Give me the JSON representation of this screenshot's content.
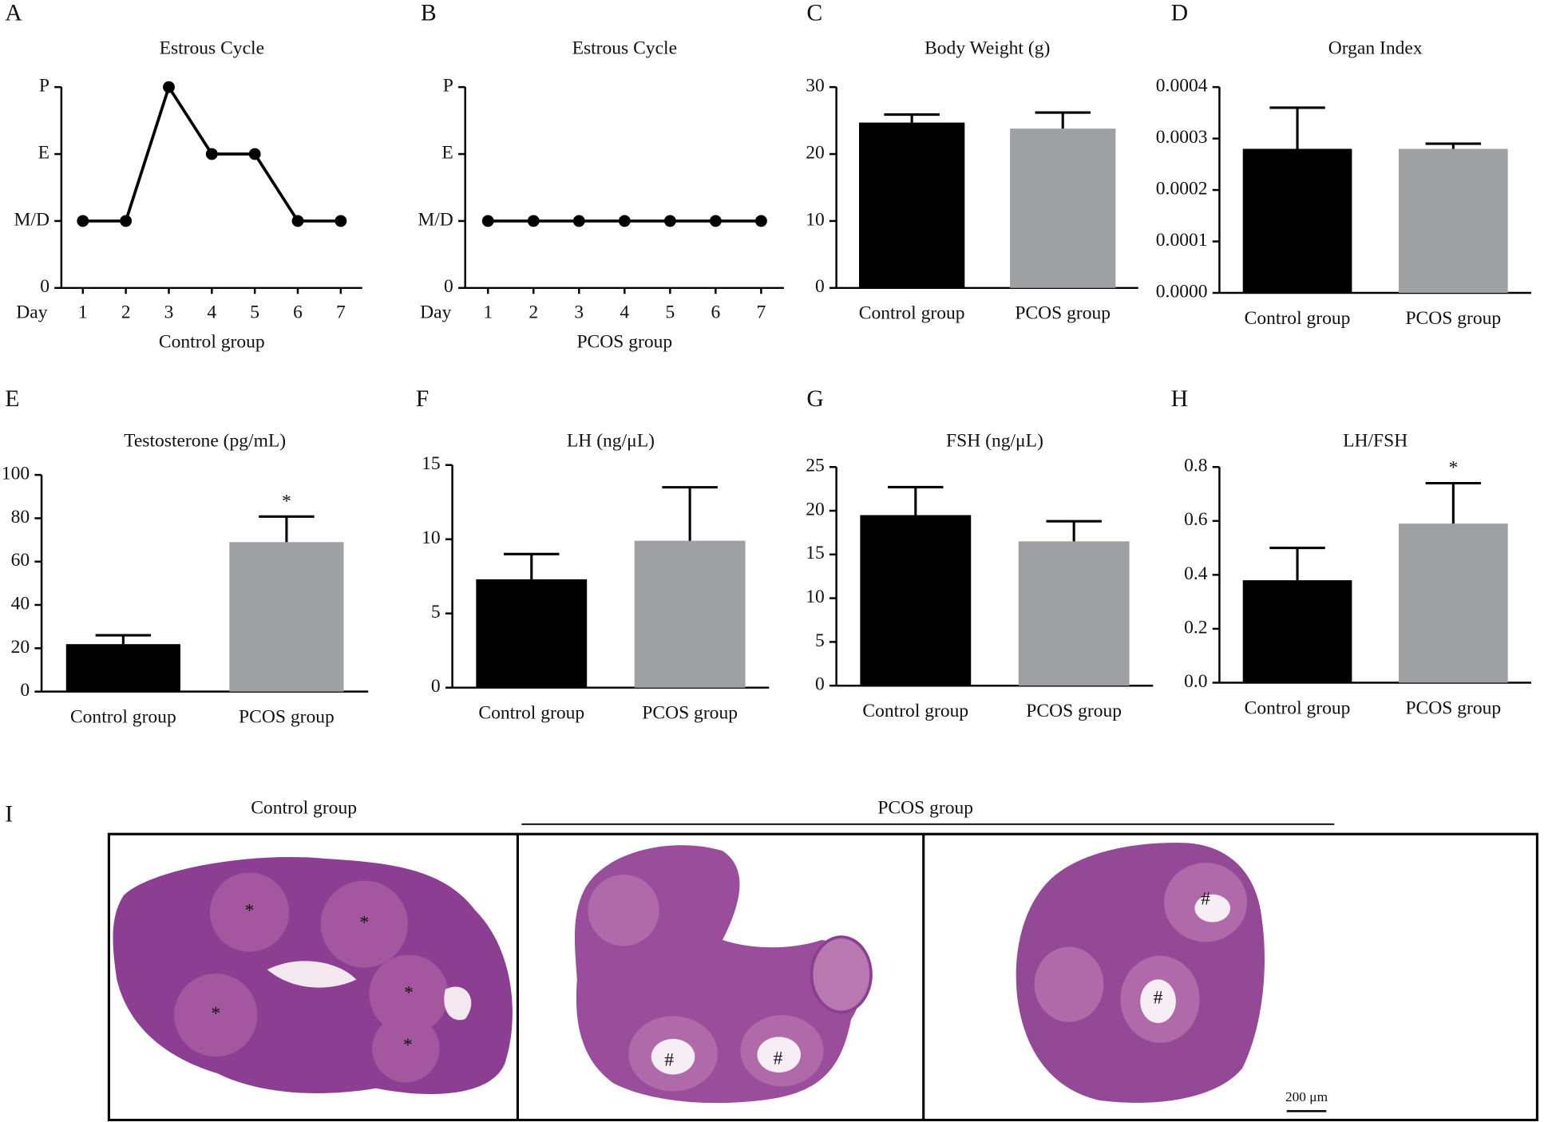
{
  "chart_data": [
    {
      "type": "line",
      "panel": "A",
      "title": "Estrous Cycle",
      "xlabel": "Control group",
      "x_prefix": "Day",
      "color": "#000000",
      "x": [
        1,
        2,
        3,
        4,
        5,
        6,
        7
      ],
      "values": [
        1,
        1,
        3,
        2,
        2,
        1,
        1
      ],
      "xlim": [
        0.5,
        7.5
      ],
      "xticks": [
        1,
        2,
        3,
        4,
        5,
        6,
        7
      ],
      "ylim": [
        0,
        3
      ],
      "yticks": [
        0,
        {
          "value": 1,
          "label": "M/D"
        },
        {
          "value": 2,
          "label": "E"
        },
        {
          "value": 3,
          "label": "P"
        }
      ]
    },
    {
      "type": "line",
      "panel": "B",
      "title": "Estrous Cycle",
      "xlabel": "PCOS group",
      "x_prefix": "Day",
      "color": "#000000",
      "x": [
        1,
        2,
        3,
        4,
        5,
        6,
        7
      ],
      "values": [
        1,
        1,
        1,
        1,
        1,
        1,
        1
      ],
      "xlim": [
        0.5,
        7.5
      ],
      "xticks": [
        1,
        2,
        3,
        4,
        5,
        6,
        7
      ],
      "ylim": [
        0,
        3
      ],
      "yticks": [
        0,
        {
          "value": 1,
          "label": "M/D"
        },
        {
          "value": 2,
          "label": "E"
        },
        {
          "value": 3,
          "label": "P"
        }
      ]
    },
    {
      "type": "bar",
      "panel": "C",
      "title": "Body Weight (g)",
      "categories": [
        "Control group",
        "PCOS group"
      ],
      "values": [
        24.7,
        23.8
      ],
      "errors": [
        1.2,
        2.4
      ],
      "colors": [
        "#000000",
        "#9fa0a3"
      ],
      "ylim": [
        0,
        30
      ],
      "yticks": [
        0,
        10,
        20,
        30
      ]
    },
    {
      "type": "bar",
      "panel": "D",
      "title": "Organ Index",
      "categories": [
        "Control group",
        "PCOS group"
      ],
      "values": [
        0.00028,
        0.00028
      ],
      "errors": [
        8e-05,
        1e-05
      ],
      "colors": [
        "#000000",
        "#9fa0a3"
      ],
      "ylim": [
        0,
        0.0004
      ],
      "yticks": [
        {
          "value": 0,
          "label": "0.0000"
        },
        {
          "value": 0.0001,
          "label": "0.0001"
        },
        {
          "value": 0.0002,
          "label": "0.0002"
        },
        {
          "value": 0.0003,
          "label": "0.0003"
        },
        {
          "value": 0.0004,
          "label": "0.0004"
        }
      ]
    },
    {
      "type": "bar",
      "panel": "E",
      "title": "Testosterone (pg/mL)",
      "categories": [
        "Control group",
        "PCOS group"
      ],
      "values": [
        21.9,
        69
      ],
      "errors": [
        4.1,
        11.8
      ],
      "colors": [
        "#000000",
        "#9fa0a3"
      ],
      "significance": [
        null,
        "*"
      ],
      "ylim": [
        0,
        100
      ],
      "yticks": [
        0,
        20,
        40,
        60,
        80,
        100
      ]
    },
    {
      "type": "bar",
      "panel": "F",
      "title": "LH (ng/μL)",
      "categories": [
        "Control group",
        "PCOS group"
      ],
      "values": [
        7.3,
        9.9
      ],
      "errors": [
        1.7,
        3.6
      ],
      "colors": [
        "#000000",
        "#9fa0a3"
      ],
      "ylim": [
        0,
        15
      ],
      "yticks": [
        0,
        5,
        10,
        15
      ]
    },
    {
      "type": "bar",
      "panel": "G",
      "title": "FSH (ng/μL)",
      "categories": [
        "Control group",
        "PCOS group"
      ],
      "values": [
        19.5,
        16.5
      ],
      "errors": [
        3.2,
        2.3
      ],
      "colors": [
        "#000000",
        "#9fa0a3"
      ],
      "ylim": [
        0,
        25
      ],
      "yticks": [
        0,
        5,
        10,
        15,
        20,
        25
      ]
    },
    {
      "type": "bar",
      "panel": "H",
      "title": "LH/FSH",
      "categories": [
        "Control group",
        "PCOS group"
      ],
      "values": [
        0.38,
        0.59
      ],
      "errors": [
        0.12,
        0.15
      ],
      "colors": [
        "#000000",
        "#9fa0a3"
      ],
      "significance": [
        null,
        "*"
      ],
      "ylim": [
        0,
        0.8
      ],
      "yticks": [
        {
          "value": 0,
          "label": "0.0"
        },
        0.2,
        0.4,
        0.6,
        0.8
      ]
    }
  ],
  "histology": {
    "panel": "I",
    "groups": [
      "Control group",
      "PCOS group"
    ],
    "scale_bar": "200 μm",
    "markers": [
      "*",
      "#"
    ]
  }
}
